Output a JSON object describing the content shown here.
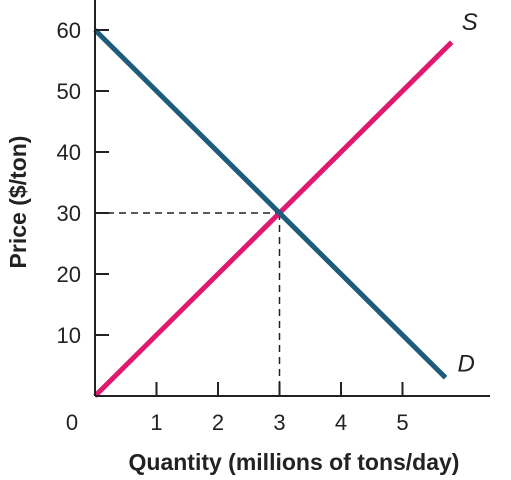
{
  "chart_data": {
    "type": "line",
    "xlabel": "Quantity (millions of tons/day)",
    "ylabel": "Price ($/ton)",
    "xlim": [
      0,
      6.6
    ],
    "ylim": [
      0,
      65
    ],
    "x_ticks": [
      0,
      1,
      2,
      3,
      4,
      5
    ],
    "y_ticks": [
      10,
      20,
      30,
      40,
      50,
      60
    ],
    "series": [
      {
        "name": "S",
        "color": "#e0196f",
        "points": [
          [
            0,
            0
          ],
          [
            5.8,
            58
          ]
        ]
      },
      {
        "name": "D",
        "color": "#1d5c7a",
        "points": [
          [
            0,
            60
          ],
          [
            5.7,
            3
          ]
        ]
      }
    ],
    "equilibrium": {
      "x": 3,
      "y": 30
    },
    "grid": false,
    "legend": "none"
  }
}
